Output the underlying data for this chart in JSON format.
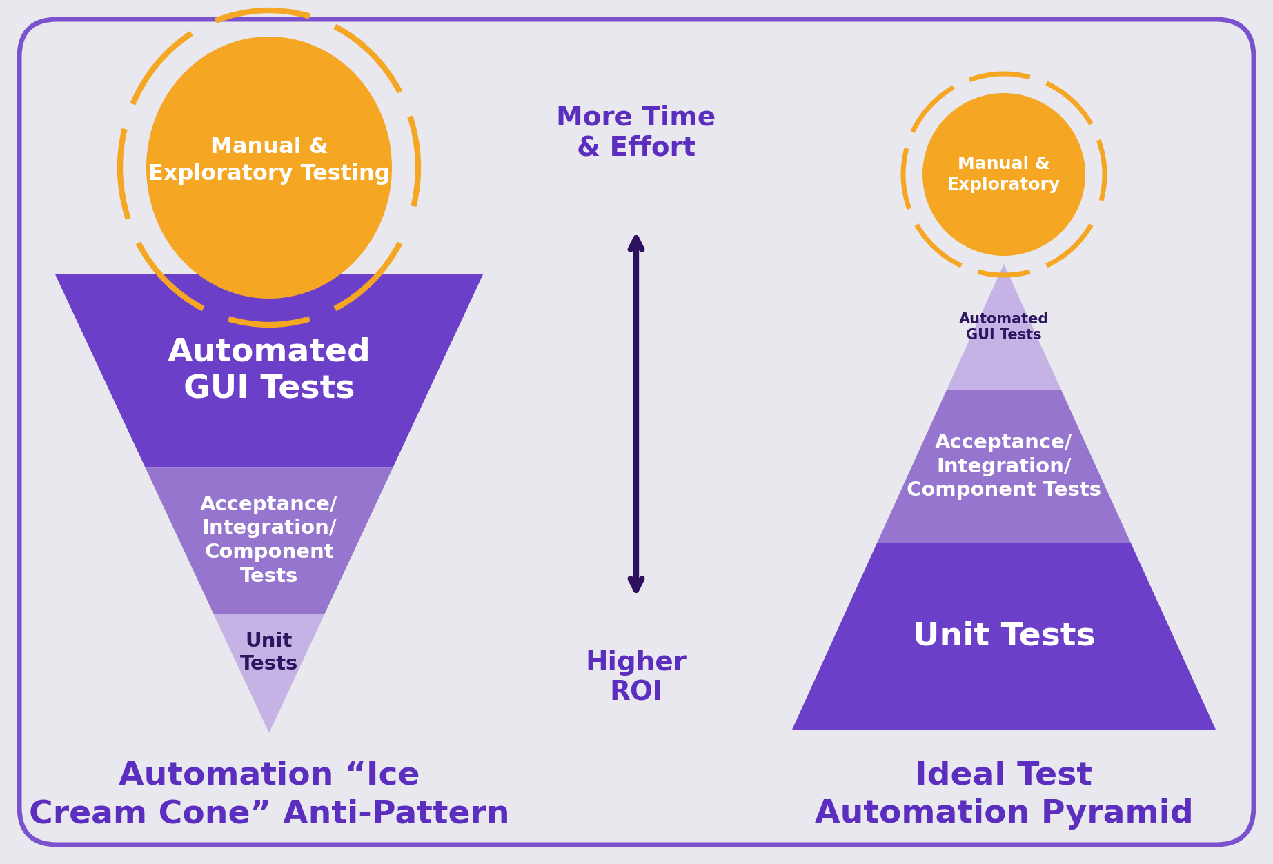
{
  "bg_color": "#e8e8ee",
  "border_color": "#7B52CD",
  "title_color": "#5B2EBF",
  "arrow_color": "#2d1060",
  "orange_color": "#F5A623",
  "orange_fill": "#F5A623",
  "purple_dark": "#6B3FC8",
  "purple_mid": "#9575CD",
  "purple_light": "#C5B3E6",
  "white": "#FFFFFF",
  "dark_purple_text": "#2d1560",
  "cone_left_label": "Automation “Ice\nCream Cone” Anti-Pattern",
  "pyramid_right_label": "Ideal Test\nAutomation Pyramid",
  "arrow_top_label": "More Time\n& Effort",
  "arrow_bottom_label": "Higher\nROI",
  "ice_cream_circle_text": "Manual &\nExploratory Testing",
  "ice_cream_layer1_text": "Automated\nGUI Tests",
  "ice_cream_layer2_text": "Acceptance/\nIntegration/\nComponent\nTests",
  "ice_cream_layer3_text": "Unit\nTests",
  "pyramid_circle_text": "Manual &\nExploratory",
  "pyramid_layer1_text": "Automated\nGUI Tests",
  "pyramid_layer2_text": "Acceptance/\nIntegration/\nComponent Tests",
  "pyramid_layer3_text": "Unit Tests"
}
